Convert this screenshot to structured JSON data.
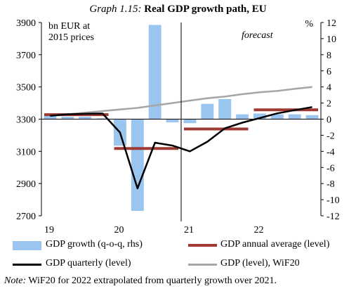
{
  "title": {
    "prefix": "Graph 1.15:",
    "main": "Real GDP growth path, EU"
  },
  "chart_data": {
    "type": "bar+line",
    "left_axis": {
      "label_line1": "bn EUR at",
      "label_line2": "2015 prices",
      "ylim": [
        2700,
        3900
      ],
      "ticks": [
        "3900",
        "3700",
        "3500",
        "3300",
        "3100",
        "2900",
        "2700"
      ]
    },
    "right_axis": {
      "unit": "%",
      "ylim": [
        -12,
        12
      ],
      "ticks": [
        "12",
        "10",
        "8",
        "6",
        "4",
        "2",
        "0",
        "-2",
        "-4",
        "-6",
        "-8",
        "-10",
        "-12"
      ]
    },
    "x_labels": [
      "19",
      "20",
      "21",
      "22"
    ],
    "quarters": [
      "2019Q1",
      "2019Q2",
      "2019Q3",
      "2019Q4",
      "2020Q1",
      "2020Q2",
      "2020Q3",
      "2020Q4",
      "2021Q1",
      "2021Q2",
      "2021Q3",
      "2021Q4",
      "2022Q1",
      "2022Q2",
      "2022Q3",
      "2022Q4"
    ],
    "forecast_label": "forecast",
    "series": [
      {
        "name": "GDP growth (q-o-q, rhs)",
        "kind": "bar",
        "axis": "right",
        "color": "#99c5ee",
        "values": [
          0.5,
          0.3,
          0.3,
          0.1,
          -3.3,
          -11.4,
          11.7,
          -0.4,
          -0.5,
          1.9,
          2.5,
          0.6,
          0.7,
          0.6,
          0.6,
          0.5
        ]
      },
      {
        "name": "GDP annual average (level)",
        "kind": "step",
        "axis": "left",
        "color": "#9e3a33",
        "values": [
          3328,
          3328,
          3328,
          3328,
          3118,
          3118,
          3118,
          3118,
          3239,
          3239,
          3239,
          3239,
          3358,
          3358,
          3358,
          3358
        ]
      },
      {
        "name": "GDP quarterly (level)",
        "kind": "line",
        "axis": "left",
        "color": "#000000",
        "values": [
          3321,
          3330,
          3333,
          3335,
          3217,
          2870,
          3154,
          3136,
          3100,
          3160,
          3243,
          3278,
          3307,
          3336,
          3356,
          3375
        ]
      },
      {
        "name": "GDP (level), WiF20",
        "kind": "line",
        "axis": "left",
        "color": "#a6a6a6",
        "values": [
          3321,
          3330,
          3340,
          3350,
          3360,
          3370,
          3385,
          3400,
          3415,
          3430,
          3440,
          3455,
          3467,
          3475,
          3488,
          3500
        ]
      }
    ]
  },
  "note": {
    "label": "Note:",
    "text": "WiF20 for 2022 extrapolated from quarterly growth over 2021."
  }
}
